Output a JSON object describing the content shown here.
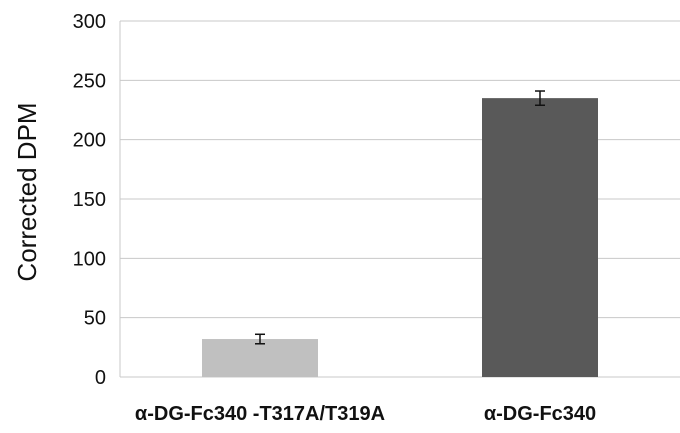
{
  "chart_data": {
    "type": "bar",
    "title": "",
    "xlabel": "",
    "ylabel": "Corrected DPM",
    "ylim": [
      0,
      300
    ],
    "yticks": [
      0,
      50,
      100,
      150,
      200,
      250,
      300
    ],
    "grid": true,
    "legend": "none",
    "categories": [
      "α-DG-Fc340 -T317A/T319A",
      "α-DG-Fc340"
    ],
    "values": [
      32,
      235
    ],
    "errors": [
      4,
      6
    ],
    "colors": [
      "#c0c0c0",
      "#595959"
    ],
    "error_color": "#111111",
    "grid_color": "#c8c8c8"
  }
}
